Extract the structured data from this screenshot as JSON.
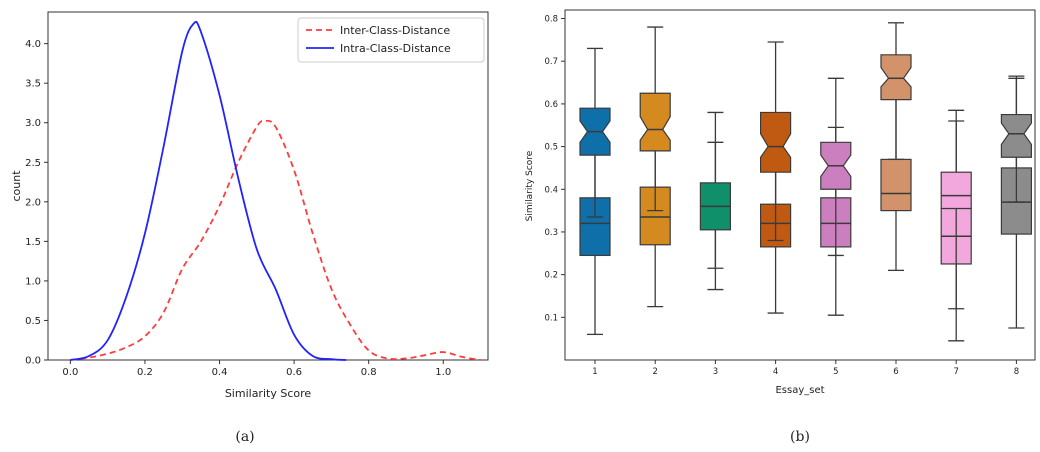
{
  "chart_data": [
    {
      "type": "line",
      "subtitle": "(a)",
      "xlabel": "Similarity Score",
      "ylabel": "count",
      "xlim": [
        -0.06,
        1.12
      ],
      "ylim": [
        0,
        4.4
      ],
      "xticks": [
        "0.0",
        "0.2",
        "0.4",
        "0.6",
        "0.8",
        "1.0"
      ],
      "yticks": [
        "0.0",
        "0.5",
        "1.0",
        "1.5",
        "2.0",
        "2.5",
        "3.0",
        "3.5",
        "4.0"
      ],
      "legend_position": "top-right",
      "grid": false,
      "series": [
        {
          "name": "Inter-Class-Distance",
          "color": "#ff3b3b",
          "style": "dashed",
          "x": [
            0.0,
            0.05,
            0.1,
            0.15,
            0.2,
            0.25,
            0.3,
            0.35,
            0.4,
            0.45,
            0.5,
            0.52,
            0.55,
            0.6,
            0.65,
            0.7,
            0.75,
            0.8,
            0.85,
            0.9,
            0.95,
            1.0,
            1.05,
            1.1
          ],
          "y": [
            0.0,
            0.03,
            0.08,
            0.16,
            0.3,
            0.6,
            1.15,
            1.5,
            1.95,
            2.5,
            2.95,
            3.02,
            2.95,
            2.4,
            1.6,
            0.9,
            0.45,
            0.12,
            0.02,
            0.02,
            0.06,
            0.1,
            0.04,
            0.0
          ]
        },
        {
          "name": "Intra-Class-Distance",
          "color": "#2222ff",
          "style": "solid",
          "x": [
            0.0,
            0.05,
            0.1,
            0.15,
            0.2,
            0.25,
            0.3,
            0.33,
            0.35,
            0.4,
            0.45,
            0.5,
            0.55,
            0.6,
            0.65,
            0.7,
            0.74
          ],
          "y": [
            0.0,
            0.05,
            0.25,
            0.8,
            1.6,
            2.7,
            3.9,
            4.25,
            4.15,
            3.35,
            2.3,
            1.4,
            0.9,
            0.32,
            0.05,
            0.01,
            0.0
          ]
        }
      ]
    },
    {
      "type": "box",
      "subtitle": "(b)",
      "xlabel": "Essay_set",
      "ylabel": "Similarity Score",
      "ylim": [
        0.0,
        0.82
      ],
      "categories": [
        "1",
        "2",
        "3",
        "4",
        "5",
        "6",
        "7",
        "8"
      ],
      "yticks": [
        "0.1",
        "0.2",
        "0.3",
        "0.4",
        "0.5",
        "0.6",
        "0.7",
        "0.8"
      ],
      "grid": false,
      "boxes": [
        {
          "cat": "1",
          "group": "upper",
          "color": "#0f6fa8",
          "q1": 0.48,
          "median": 0.535,
          "q3": 0.59,
          "notch_lo": 0.51,
          "notch_hi": 0.56,
          "whisker_lo": 0.335,
          "whisker_hi": 0.73
        },
        {
          "cat": "1",
          "group": "lower",
          "color": "#0f6fa8",
          "q1": 0.245,
          "median": 0.32,
          "q3": 0.38,
          "whisker_lo": 0.06,
          "whisker_hi": 0.56
        },
        {
          "cat": "2",
          "group": "upper",
          "color": "#d48a1e",
          "q1": 0.49,
          "median": 0.54,
          "q3": 0.625,
          "notch_lo": 0.515,
          "notch_hi": 0.57,
          "whisker_lo": 0.35,
          "whisker_hi": 0.78
        },
        {
          "cat": "2",
          "group": "lower",
          "color": "#d48a1e",
          "q1": 0.27,
          "median": 0.335,
          "q3": 0.405,
          "whisker_lo": 0.125,
          "whisker_hi": 0.605
        },
        {
          "cat": "3",
          "group": "single",
          "color": "#0f8f6a",
          "q1": 0.305,
          "median": 0.36,
          "q3": 0.415,
          "whisker_lo": 0.165,
          "whisker_hi": 0.58
        },
        {
          "cat": "3",
          "group": "extra",
          "color": "#0f8f6a",
          "whisker_lo": 0.215,
          "whisker_hi": 0.51
        },
        {
          "cat": "4",
          "group": "upper",
          "color": "#c05a12",
          "q1": 0.44,
          "median": 0.5,
          "q3": 0.58,
          "notch_lo": 0.475,
          "notch_hi": 0.53,
          "whisker_lo": 0.28,
          "whisker_hi": 0.745
        },
        {
          "cat": "4",
          "group": "lower",
          "color": "#c05a12",
          "q1": 0.265,
          "median": 0.32,
          "q3": 0.365,
          "whisker_lo": 0.11,
          "whisker_hi": 0.51
        },
        {
          "cat": "5",
          "group": "upper",
          "color": "#cc7fbf",
          "q1": 0.4,
          "median": 0.455,
          "q3": 0.51,
          "notch_lo": 0.43,
          "notch_hi": 0.48,
          "whisker_lo": 0.245,
          "whisker_hi": 0.66
        },
        {
          "cat": "5",
          "group": "lower",
          "color": "#cc7fbf",
          "q1": 0.265,
          "median": 0.32,
          "q3": 0.38,
          "whisker_lo": 0.105,
          "whisker_hi": 0.545
        },
        {
          "cat": "6",
          "group": "upper",
          "color": "#d2936a",
          "q1": 0.61,
          "median": 0.66,
          "q3": 0.715,
          "notch_lo": 0.64,
          "notch_hi": 0.685,
          "whisker_lo": 0.47,
          "whisker_hi": 0.79
        },
        {
          "cat": "6",
          "group": "lower",
          "color": "#d2936a",
          "q1": 0.35,
          "median": 0.39,
          "q3": 0.47,
          "whisker_lo": 0.21,
          "whisker_hi": 0.615
        },
        {
          "cat": "7",
          "group": "upper",
          "color": "#f2a8dd",
          "q1": 0.355,
          "median": 0.385,
          "q3": 0.44,
          "whisker_lo": 0.12,
          "whisker_hi": 0.585
        },
        {
          "cat": "7",
          "group": "lower",
          "color": "#f2a8dd",
          "q1": 0.225,
          "median": 0.29,
          "q3": 0.355,
          "whisker_lo": 0.045,
          "whisker_hi": 0.56
        },
        {
          "cat": "8",
          "group": "upper",
          "color": "#8c8c8c",
          "q1": 0.475,
          "median": 0.53,
          "q3": 0.575,
          "notch_lo": 0.505,
          "notch_hi": 0.555,
          "whisker_lo": 0.37,
          "whisker_hi": 0.665
        },
        {
          "cat": "8",
          "group": "lower",
          "color": "#8c8c8c",
          "q1": 0.295,
          "median": 0.37,
          "q3": 0.45,
          "whisker_lo": 0.075,
          "whisker_hi": 0.66
        }
      ]
    }
  ]
}
